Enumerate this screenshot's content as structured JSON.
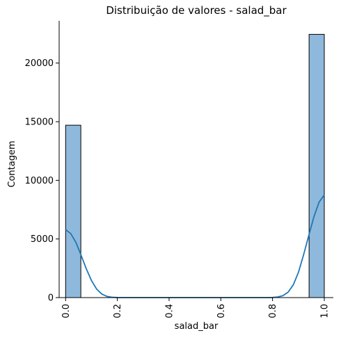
{
  "chart_data": {
    "type": "histogram",
    "title": "Distribuição de valores - salad_bar",
    "xlabel": "salad_bar",
    "ylabel": "Contagem",
    "xlim": [
      -0.025,
      1.035
    ],
    "ylim": [
      0,
      23600
    ],
    "bin_width": 0.0588,
    "bars": [
      {
        "x0": 0.0,
        "x1": 0.0588,
        "count": 14700
      },
      {
        "x0": 0.9412,
        "x1": 1.0,
        "count": 22450
      }
    ],
    "xticks": [
      {
        "value": 0.0,
        "label": "0.0"
      },
      {
        "value": 0.2,
        "label": "0.2"
      },
      {
        "value": 0.4,
        "label": "0.4"
      },
      {
        "value": 0.6,
        "label": "0.6"
      },
      {
        "value": 0.8,
        "label": "0.8"
      },
      {
        "value": 1.0,
        "label": "1.0"
      }
    ],
    "yticks": [
      {
        "value": 0,
        "label": "0"
      },
      {
        "value": 5000,
        "label": "5000"
      },
      {
        "value": 10000,
        "label": "10000"
      },
      {
        "value": 15000,
        "label": "15000"
      },
      {
        "value": 20000,
        "label": "20000"
      }
    ],
    "kde": {
      "points": [
        [
          0.0,
          5800
        ],
        [
          0.02,
          5450
        ],
        [
          0.04,
          4700
        ],
        [
          0.06,
          3600
        ],
        [
          0.08,
          2450
        ],
        [
          0.1,
          1450
        ],
        [
          0.12,
          720
        ],
        [
          0.14,
          300
        ],
        [
          0.16,
          100
        ],
        [
          0.18,
          25
        ],
        [
          0.2,
          5
        ],
        [
          0.22,
          0
        ],
        [
          0.78,
          0
        ],
        [
          0.8,
          10
        ],
        [
          0.82,
          50
        ],
        [
          0.84,
          160
        ],
        [
          0.86,
          460
        ],
        [
          0.88,
          1080
        ],
        [
          0.9,
          2150
        ],
        [
          0.92,
          3650
        ],
        [
          0.94,
          5300
        ],
        [
          0.96,
          6900
        ],
        [
          0.98,
          8150
        ],
        [
          1.0,
          8750
        ]
      ]
    },
    "grid": false,
    "colors": {
      "bar_fill": "#8fb9dc",
      "bar_edge": "#000000",
      "kde_line": "#1f77b4",
      "axis": "#000000"
    }
  }
}
